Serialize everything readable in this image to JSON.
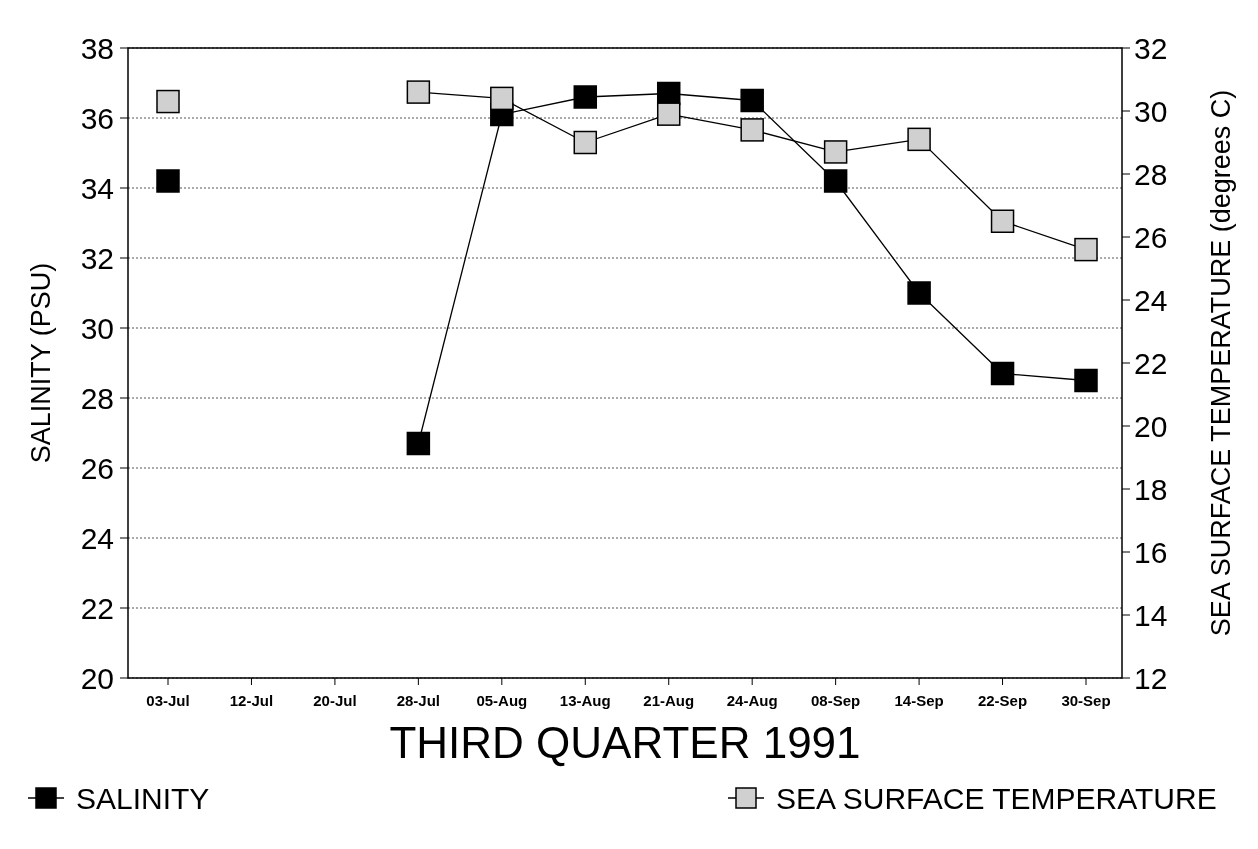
{
  "chart_data": {
    "type": "line",
    "xlabel": "THIRD QUARTER 1991",
    "ylabel": "SALINITY (PSU)",
    "y2label": "SEA SURFACE TEMPERATURE (degrees C)",
    "categories": [
      "03-Jul",
      "12-Jul",
      "20-Jul",
      "28-Jul",
      "05-Aug",
      "13-Aug",
      "21-Aug",
      "24-Aug",
      "08-Sep",
      "14-Sep",
      "22-Sep",
      "30-Sep"
    ],
    "series": [
      {
        "name": "SALINITY",
        "color": "#000000",
        "values": [
          34.2,
          null,
          null,
          26.7,
          36.1,
          36.6,
          36.7,
          36.5,
          34.2,
          31.0,
          28.7,
          28.5
        ]
      },
      {
        "name": "SEA SURFACE TEMPERATURE",
        "color": "#d0d0d0",
        "axis": "y2",
        "values": [
          30.3,
          null,
          null,
          30.6,
          30.4,
          29.0,
          29.9,
          29.4,
          28.7,
          29.1,
          26.5,
          25.6
        ]
      }
    ],
    "ylim": [
      20,
      38
    ],
    "yticks": [
      20,
      22,
      24,
      26,
      28,
      30,
      32,
      34,
      36,
      38
    ],
    "y2lim": [
      12,
      32
    ],
    "y2ticks": [
      12,
      14,
      16,
      18,
      20,
      22,
      24,
      26,
      28,
      30,
      32
    ],
    "grid": "y",
    "legend": "bottom",
    "marker": "square",
    "line_style": "solid"
  }
}
